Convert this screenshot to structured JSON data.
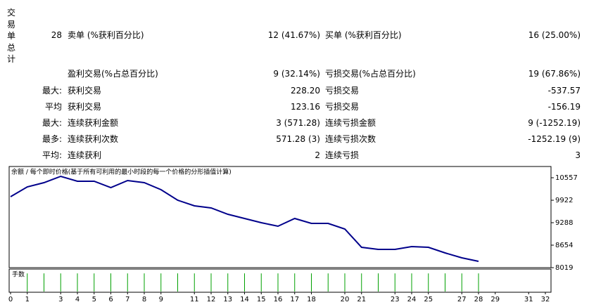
{
  "summary": {
    "title": "交易单总计",
    "rows": [
      {
        "prefix": "28",
        "label": "卖单 (%获利百分比)",
        "value": "12 (41.67%)",
        "label2": "买单 (%获利百分比)",
        "value2": "16 (25.00%)"
      },
      {
        "label": "盈利交易(%占总百分比)",
        "value": "9 (32.14%)",
        "label2": "亏损交易(%占总百分比)",
        "value2": "19 (67.86%)"
      },
      {
        "prefix": "最大:",
        "label": "获利交易",
        "value": "228.20",
        "label2": "亏损交易",
        "value2": "-537.57"
      },
      {
        "prefix": "平均",
        "label": "获利交易",
        "value": "123.16",
        "label2": "亏损交易",
        "value2": "-156.19"
      },
      {
        "prefix": "最大:",
        "label": "连续获利金额",
        "value": "3 (571.28)",
        "label2": "连续亏损金额",
        "value2": "9 (-1252.19)"
      },
      {
        "prefix": "最多:",
        "label": "连续获利次数",
        "value": "571.28 (3)",
        "label2": "连续亏损次数",
        "value2": "-1252.19 (9)"
      },
      {
        "prefix": "平均:",
        "label": "连续获利",
        "value": "2",
        "label2": "连续亏损",
        "value2": "3"
      }
    ]
  },
  "chart_data": [
    {
      "type": "line",
      "title": "余额 / 每个即时价格(基于所有可利用的最小时段的每一个价格的分形插值计算)",
      "x": [
        0,
        1,
        2,
        3,
        4,
        5,
        6,
        7,
        8,
        9,
        10,
        11,
        12,
        13,
        14,
        15,
        16,
        17,
        18,
        19,
        20,
        21,
        22,
        23,
        24,
        25,
        26,
        27,
        28
      ],
      "values": [
        10022,
        10299,
        10418,
        10597,
        10458,
        10458,
        10279,
        10478,
        10418,
        10220,
        9922,
        9764,
        9704,
        9526,
        9407,
        9288,
        9188,
        9407,
        9268,
        9268,
        9109,
        8594,
        8535,
        8535,
        8614,
        8594,
        8436,
        8297,
        8198
      ],
      "color": "#00008b",
      "xlim": [
        0,
        32
      ],
      "ylim": [
        8019,
        10874
      ],
      "yticks": [
        10557,
        9922,
        9288,
        8654,
        8019
      ]
    },
    {
      "type": "bar",
      "title": "手数",
      "x": [
        1,
        2,
        3,
        4,
        5,
        6,
        7,
        8,
        9,
        10,
        11,
        12,
        13,
        14,
        15,
        16,
        17,
        18,
        19,
        20,
        21,
        22,
        23,
        24,
        25,
        26,
        27,
        28
      ],
      "values": [
        1,
        1,
        1,
        1,
        1,
        1,
        1,
        1,
        1,
        1,
        1,
        1,
        1,
        1,
        1,
        1,
        1,
        1,
        1,
        1,
        1,
        1,
        1,
        1,
        1,
        1,
        1,
        1
      ],
      "color": "#00a000",
      "xlim": [
        0,
        32
      ],
      "ylim": [
        0,
        1.2
      ],
      "xticks": [
        0,
        1,
        3,
        4,
        5,
        6,
        7,
        8,
        9,
        11,
        12,
        13,
        14,
        15,
        16,
        17,
        18,
        20,
        21,
        23,
        24,
        25,
        27,
        28,
        29,
        31,
        32
      ]
    }
  ]
}
